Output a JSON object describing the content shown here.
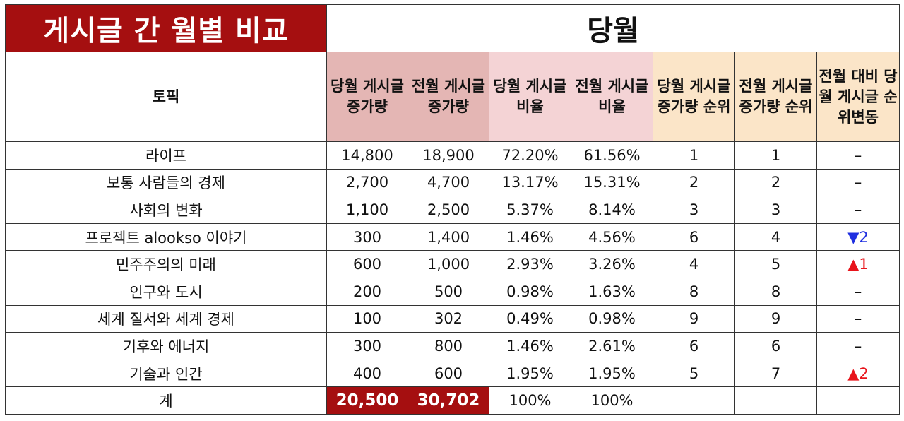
{
  "title": "게시글 간 월별 비교",
  "month_label": "당월",
  "headers": {
    "topic": "토픽",
    "cur_inc": "당월 게시글 증가량",
    "prev_inc": "전월 게시글 증가량",
    "cur_ratio": "당월 게시글 비율",
    "prev_ratio": "전월 게시글 비율",
    "cur_rank": "당월 게시글 증가량 순위",
    "prev_rank": "전월 게시글 증가량 순위",
    "rank_change": "전월 대비 당월 게시글 순위변동"
  },
  "rows": [
    {
      "topic": "라이프",
      "cur_inc": "14,800",
      "prev_inc": "18,900",
      "cur_ratio": "72.20%",
      "prev_ratio": "61.56%",
      "cur_rank": "1",
      "prev_rank": "1",
      "change": "–",
      "dir": "none"
    },
    {
      "topic": "보통 사람들의 경제",
      "cur_inc": "2,700",
      "prev_inc": "4,700",
      "cur_ratio": "13.17%",
      "prev_ratio": "15.31%",
      "cur_rank": "2",
      "prev_rank": "2",
      "change": "–",
      "dir": "none"
    },
    {
      "topic": "사회의 변화",
      "cur_inc": "1,100",
      "prev_inc": "2,500",
      "cur_ratio": "5.37%",
      "prev_ratio": "8.14%",
      "cur_rank": "3",
      "prev_rank": "3",
      "change": "–",
      "dir": "none"
    },
    {
      "topic": "프로젝트 alookso 이야기",
      "cur_inc": "300",
      "prev_inc": "1,400",
      "cur_ratio": "1.46%",
      "prev_ratio": "4.56%",
      "cur_rank": "6",
      "prev_rank": "4",
      "change": "▼2",
      "dir": "down"
    },
    {
      "topic": "민주주의의 미래",
      "cur_inc": "600",
      "prev_inc": "1,000",
      "cur_ratio": "2.93%",
      "prev_ratio": "3.26%",
      "cur_rank": "4",
      "prev_rank": "5",
      "change": "▲1",
      "dir": "up"
    },
    {
      "topic": "인구와 도시",
      "cur_inc": "200",
      "prev_inc": "500",
      "cur_ratio": "0.98%",
      "prev_ratio": "1.63%",
      "cur_rank": "8",
      "prev_rank": "8",
      "change": "–",
      "dir": "none"
    },
    {
      "topic": "세계 질서와 세계 경제",
      "cur_inc": "100",
      "prev_inc": "302",
      "cur_ratio": "0.49%",
      "prev_ratio": "0.98%",
      "cur_rank": "9",
      "prev_rank": "9",
      "change": "–",
      "dir": "none"
    },
    {
      "topic": "기후와 에너지",
      "cur_inc": "300",
      "prev_inc": "800",
      "cur_ratio": "1.46%",
      "prev_ratio": "2.61%",
      "cur_rank": "6",
      "prev_rank": "6",
      "change": "–",
      "dir": "none"
    },
    {
      "topic": "기술과 인간",
      "cur_inc": "400",
      "prev_inc": "600",
      "cur_ratio": "1.95%",
      "prev_ratio": "1.95%",
      "cur_rank": "5",
      "prev_rank": "7",
      "change": "▲2",
      "dir": "up"
    }
  ],
  "total": {
    "label": "계",
    "cur_inc": "20,500",
    "prev_inc": "30,702",
    "cur_ratio": "100%",
    "prev_ratio": "100%"
  },
  "colors": {
    "title_bg": "#a50f10",
    "header_dark": "#e4b6b4",
    "header_light": "#f4d3d5",
    "header_cream": "#fbe5c8",
    "up": "#e8141b",
    "down": "#1f2fe0"
  }
}
